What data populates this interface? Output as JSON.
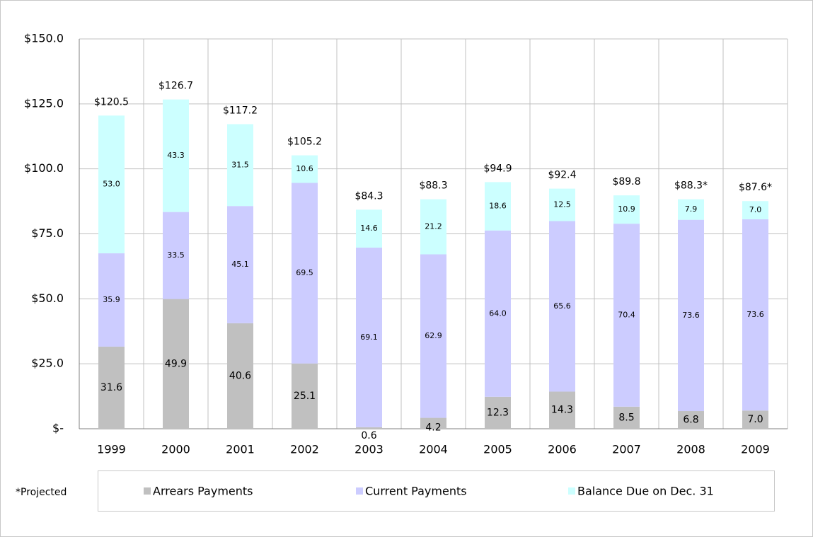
{
  "chart_data": {
    "type": "stacked_bar",
    "categories": [
      "1999",
      "2000",
      "2001",
      "2002",
      "2003",
      "2004",
      "2005",
      "2006",
      "2007",
      "2008",
      "2009"
    ],
    "series": [
      {
        "name": "Arrears Payments",
        "color": "#c0c0c0",
        "values": [
          31.6,
          49.9,
          40.6,
          25.1,
          0.6,
          4.2,
          12.3,
          14.3,
          8.5,
          6.8,
          7.0
        ],
        "value_labels": [
          "31.6",
          "49.9",
          "40.6",
          "25.1",
          "0.6",
          "4.2",
          "12.3",
          "14.3",
          "8.5",
          "6.8",
          "7.0"
        ]
      },
      {
        "name": "Current Payments",
        "color": "#ccccff",
        "values": [
          35.9,
          33.5,
          45.1,
          69.5,
          69.1,
          62.9,
          64.0,
          65.6,
          70.4,
          73.6,
          73.6
        ],
        "value_labels": [
          "35.9",
          "33.5",
          "45.1",
          "69.5",
          "69.1",
          "62.9",
          "64.0",
          "65.6",
          "70.4",
          "73.6",
          "73.6"
        ]
      },
      {
        "name": "Balance Due on Dec. 31",
        "color": "#ccffff",
        "values": [
          53.0,
          43.3,
          31.5,
          10.6,
          14.6,
          21.2,
          18.6,
          12.5,
          10.9,
          7.9,
          7.0
        ],
        "value_labels": [
          "53.0",
          "43.3",
          "31.5",
          "10.6",
          "14.6",
          "21.2",
          "18.6",
          "12.5",
          "10.9",
          "7.9",
          "7.0"
        ]
      }
    ],
    "totals": {
      "values": [
        120.5,
        126.7,
        117.2,
        105.2,
        84.3,
        88.3,
        94.9,
        92.4,
        89.8,
        88.3,
        87.6
      ],
      "value_labels": [
        "$120.5",
        "$126.7",
        "$117.2",
        "$105.2",
        "$84.3",
        "$88.3",
        "$94.9",
        "$92.4",
        "$89.8",
        "$88.3*",
        "$87.6*"
      ]
    },
    "ylim": [
      0,
      150
    ],
    "yticks": [
      {
        "value": 0,
        "label": "$-"
      },
      {
        "value": 25,
        "label": "$25.0"
      },
      {
        "value": 50,
        "label": "$50.0"
      },
      {
        "value": 75,
        "label": "$75.0"
      },
      {
        "value": 100,
        "label": "$100.0"
      },
      {
        "value": 125,
        "label": "$125.0"
      },
      {
        "value": 150,
        "label": "$150.0"
      }
    ],
    "grid": true,
    "legend": "bottom",
    "footnote": "*Projected"
  }
}
